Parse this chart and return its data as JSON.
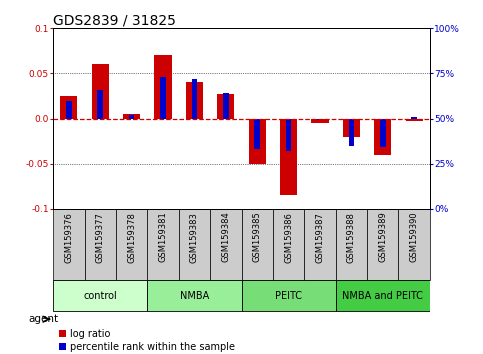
{
  "title": "GDS2839 / 31825",
  "samples": [
    "GSM159376",
    "GSM159377",
    "GSM159378",
    "GSM159381",
    "GSM159383",
    "GSM159384",
    "GSM159385",
    "GSM159386",
    "GSM159387",
    "GSM159388",
    "GSM159389",
    "GSM159390"
  ],
  "log_ratio": [
    0.025,
    0.06,
    0.005,
    0.07,
    0.04,
    0.027,
    -0.05,
    -0.085,
    -0.005,
    -0.02,
    -0.04,
    -0.003
  ],
  "percentile_rank_pct": [
    60,
    66,
    52,
    73,
    72,
    64,
    33,
    32,
    49,
    35,
    34,
    51
  ],
  "groups": [
    {
      "label": "control",
      "start": 0,
      "end": 2,
      "color": "#ccffcc"
    },
    {
      "label": "NMBA",
      "start": 3,
      "end": 5,
      "color": "#99ee99"
    },
    {
      "label": "PEITC",
      "start": 6,
      "end": 8,
      "color": "#77dd77"
    },
    {
      "label": "NMBA and PEITC",
      "start": 9,
      "end": 11,
      "color": "#44cc44"
    }
  ],
  "ylim": [
    -0.1,
    0.1
  ],
  "yticks_left": [
    -0.1,
    -0.05,
    0.0,
    0.05,
    0.1
  ],
  "yticks_right": [
    0,
    25,
    50,
    75,
    100
  ],
  "bar_color_red": "#cc0000",
  "bar_color_blue": "#0000cc",
  "zero_line_color": "#cc0000",
  "background_color": "#ffffff",
  "sample_box_color": "#cccccc",
  "title_fontsize": 10,
  "tick_fontsize": 6.5,
  "sample_fontsize": 6,
  "group_fontsize": 8,
  "legend_fontsize": 7
}
